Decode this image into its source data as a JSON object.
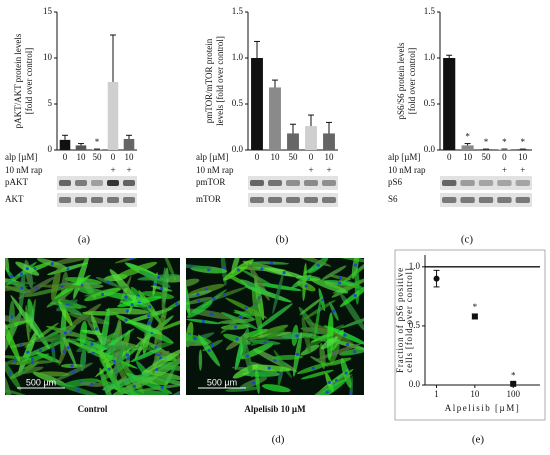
{
  "chart_data": [
    {
      "type": "bar",
      "ylabel": [
        "pAKT/AKT protein levels",
        "[fold over control]"
      ],
      "categories": [
        0,
        10,
        50,
        0,
        10
      ],
      "values": [
        1.1,
        0.5,
        0.05,
        7.4,
        1.2
      ],
      "errors": [
        0.5,
        0.2,
        0.05,
        5.1,
        0.4
      ],
      "colors": [
        "#111111",
        "#555555",
        "#8a8a8a",
        "#cfcfcf",
        "#666666"
      ],
      "significance": [
        null,
        null,
        "*",
        null,
        null
      ],
      "ylim": [
        0,
        15
      ],
      "yticks": [
        0,
        5,
        10,
        15
      ],
      "conditions": [
        {
          "label": "alp [µM]",
          "values": [
            0,
            10,
            50,
            0,
            10
          ]
        },
        {
          "label": "10 nM rap",
          "values": [
            null,
            null,
            null,
            "+",
            "+"
          ]
        }
      ],
      "blots": [
        "pAKT",
        "AKT"
      ]
    },
    {
      "type": "bar",
      "ylabel": [
        "pmTOR/mTOR protein",
        "levels [fold over control]"
      ],
      "categories": [
        0,
        10,
        50,
        0,
        10
      ],
      "values": [
        1.0,
        0.68,
        0.18,
        0.26,
        0.18
      ],
      "errors": [
        0.18,
        0.08,
        0.1,
        0.12,
        0.12
      ],
      "colors": [
        "#111111",
        "#8a8a8a",
        "#666666",
        "#cfcfcf",
        "#666666"
      ],
      "significance": [
        null,
        null,
        null,
        null,
        null
      ],
      "ylim": [
        0,
        1.5
      ],
      "yticks": [
        {
          "value": 0,
          "label": "0.0"
        },
        {
          "value": 0.5,
          "label": "0.5"
        },
        {
          "value": 1,
          "label": "1.0"
        },
        {
          "value": 1.5,
          "label": "1.5"
        }
      ],
      "conditions": [
        {
          "label": "alp [µM]",
          "values": [
            0,
            10,
            50,
            0,
            10
          ]
        },
        {
          "label": "10 nM rap",
          "values": [
            null,
            null,
            null,
            "+",
            "+"
          ]
        }
      ],
      "blots": [
        "pmTOR",
        "mTOR"
      ]
    },
    {
      "type": "bar",
      "ylabel": [
        "pS6/S6 protein levels",
        "[fold over control]"
      ],
      "categories": [
        0,
        10,
        50,
        0,
        10
      ],
      "values": [
        1.0,
        0.05,
        0.01,
        0.01,
        0.01
      ],
      "errors": [
        0.03,
        0.02,
        0,
        0,
        0
      ],
      "colors": [
        "#111111",
        "#8a8a8a",
        "#666666",
        "#cfcfcf",
        "#666666"
      ],
      "significance": [
        null,
        "*",
        "*",
        "*",
        "*"
      ],
      "ylim": [
        0,
        1.5
      ],
      "yticks": [
        {
          "value": 0,
          "label": "0.0"
        },
        {
          "value": 0.5,
          "label": "0.5"
        },
        {
          "value": 1,
          "label": "1.0"
        },
        {
          "value": 1.5,
          "label": "1.5"
        }
      ],
      "conditions": [
        {
          "label": "alp [µM]",
          "values": [
            0,
            10,
            50,
            0,
            10
          ]
        },
        {
          "label": "10 nM rap",
          "values": [
            null,
            null,
            null,
            "+",
            "+"
          ]
        }
      ],
      "blots": [
        "pS6",
        "S6"
      ]
    },
    {
      "type": "scatter",
      "ylabel": [
        "Fraction of pS6 positive",
        "cells [fold over control]"
      ],
      "xlabel": "Alpelisib [µM]",
      "x": [
        1,
        10,
        100
      ],
      "values": [
        0.9,
        0.58,
        0.01
      ],
      "errors": [
        0.07,
        0.02,
        0.01
      ],
      "significance": [
        null,
        "*",
        "*"
      ],
      "color": "#111111",
      "xlog": true,
      "xlim": [
        0.5,
        500
      ],
      "xticks": [
        1,
        10,
        100
      ],
      "ylim": [
        0,
        1.1
      ],
      "yticks": [
        {
          "value": 0,
          "label": "0.0"
        },
        {
          "value": 0.5,
          "label": "0.5"
        },
        {
          "value": 1,
          "label": "1.0"
        }
      ],
      "reference_line": 1
    }
  ],
  "micrographs": [
    {
      "caption": "Control",
      "scale": "500 µm"
    },
    {
      "caption": "Alpelisib 10 µM",
      "scale": "500 µm"
    }
  ],
  "panel_labels": [
    "(a)",
    "(b)",
    "(c)",
    "(d)",
    "(e)"
  ]
}
